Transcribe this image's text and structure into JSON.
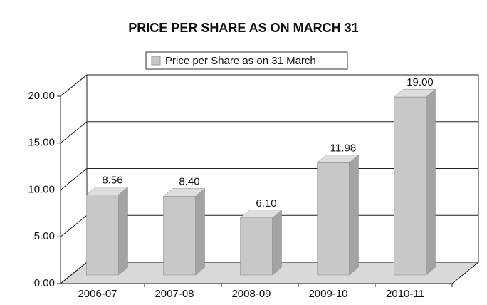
{
  "chart_data": {
    "type": "bar3d",
    "title": "PRICE PER SHARE AS ON MARCH 31",
    "categories": [
      "2006-07",
      "2007-08",
      "2008-09",
      "2009-10",
      "2010-11"
    ],
    "series": [
      {
        "name": "Price per Share as on 31 March",
        "color": "#c8c8c8",
        "values": [
          8.56,
          8.4,
          6.1,
          11.98,
          19.0
        ],
        "value_labels": [
          "8.56",
          "8.40",
          "6.10",
          "11.98",
          "19.00"
        ]
      }
    ],
    "ylim": [
      0,
      20
    ],
    "yticks": [
      {
        "value": 0,
        "label": "0.00"
      },
      {
        "value": 5,
        "label": "5.00"
      },
      {
        "value": 10,
        "label": "10.00"
      },
      {
        "value": 15,
        "label": "15.00"
      },
      {
        "value": 20,
        "label": "20.00"
      }
    ],
    "grid": true,
    "legend": "top"
  }
}
